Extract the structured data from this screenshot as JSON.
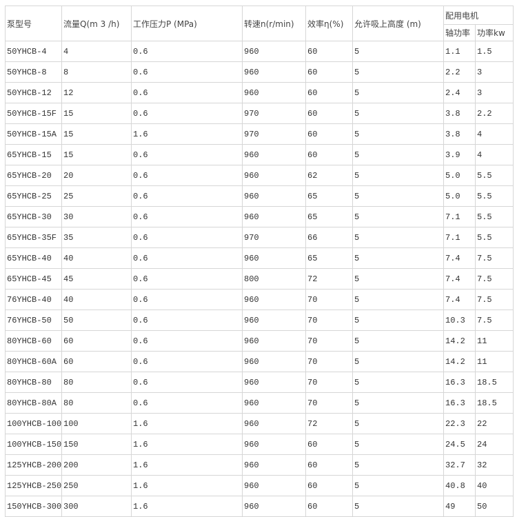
{
  "headers": {
    "model": "泵型号",
    "flow": "流量Q(m 3 /h)",
    "pressure": "工作压力P (MPa)",
    "speed": "转速n(r/min)",
    "efficiency": "效率η(%)",
    "suction": "允许吸上高度 (m)",
    "motor": "配用电机",
    "shaft_power": "轴功率",
    "power": "功率kw"
  },
  "rows": [
    [
      "50YHCB-4",
      "4",
      "0.6",
      "960",
      "60",
      "5",
      "1.1",
      "1.5"
    ],
    [
      "50YHCB-8",
      "8",
      "0.6",
      "960",
      "60",
      "5",
      "2.2",
      "3"
    ],
    [
      "50YHCB-12",
      "12",
      "0.6",
      "960",
      "60",
      "5",
      "2.4",
      "3"
    ],
    [
      "50YHCB-15F",
      "15",
      "0.6",
      "970",
      "60",
      "5",
      "3.8",
      "2.2"
    ],
    [
      "50YHCB-15A",
      "15",
      "1.6",
      "970",
      "60",
      "5",
      "3.8",
      "4"
    ],
    [
      "65YHCB-15",
      "15",
      "0.6",
      "960",
      "60",
      "5",
      "3.9",
      "4"
    ],
    [
      "65YHCB-20",
      "20",
      "0.6",
      "960",
      "62",
      "5",
      "5.0",
      "5.5"
    ],
    [
      "65YHCB-25",
      "25",
      "0.6",
      "960",
      "65",
      "5",
      "5.0",
      "5.5"
    ],
    [
      "65YHCB-30",
      "30",
      "0.6",
      "960",
      "65",
      "5",
      "7.1",
      "5.5"
    ],
    [
      "65YHCB-35F",
      "35",
      "0.6",
      "970",
      "66",
      "5",
      "7.1",
      "5.5"
    ],
    [
      "65YHCB-40",
      "40",
      "0.6",
      "960",
      "65",
      "5",
      "7.4",
      "7.5"
    ],
    [
      "65YHCB-45",
      "45",
      "0.6",
      "800",
      "72",
      "5",
      "7.4",
      "7.5"
    ],
    [
      "76YHCB-40",
      "40",
      "0.6",
      "960",
      "70",
      "5",
      "7.4",
      "7.5"
    ],
    [
      "76YHCB-50",
      "50",
      "0.6",
      "960",
      "70",
      "5",
      "10.3",
      "7.5"
    ],
    [
      "80YHCB-60",
      "60",
      "0.6",
      "960",
      "70",
      "5",
      "14.2",
      "11"
    ],
    [
      "80YHCB-60A",
      "60",
      "0.6",
      "960",
      "70",
      "5",
      "14.2",
      "11"
    ],
    [
      "80YHCB-80",
      "80",
      "0.6",
      "960",
      "70",
      "5",
      "16.3",
      "18.5"
    ],
    [
      "80YHCB-80A",
      "80",
      "0.6",
      "960",
      "70",
      "5",
      "16.3",
      "18.5"
    ],
    [
      "100YHCB-100",
      "100",
      "1.6",
      "960",
      "72",
      "5",
      "22.3",
      "22"
    ],
    [
      "100YHCB-150",
      "150",
      "1.6",
      "960",
      "60",
      "5",
      "24.5",
      "24"
    ],
    [
      "125YHCB-200",
      "200",
      "1.6",
      "960",
      "60",
      "5",
      "32.7",
      "32"
    ],
    [
      "125YHCB-250",
      "250",
      "1.6",
      "960",
      "60",
      "5",
      "40.8",
      "40"
    ],
    [
      "150YHCB-300",
      "300",
      "1.6",
      "960",
      "60",
      "5",
      "49",
      "50"
    ]
  ]
}
